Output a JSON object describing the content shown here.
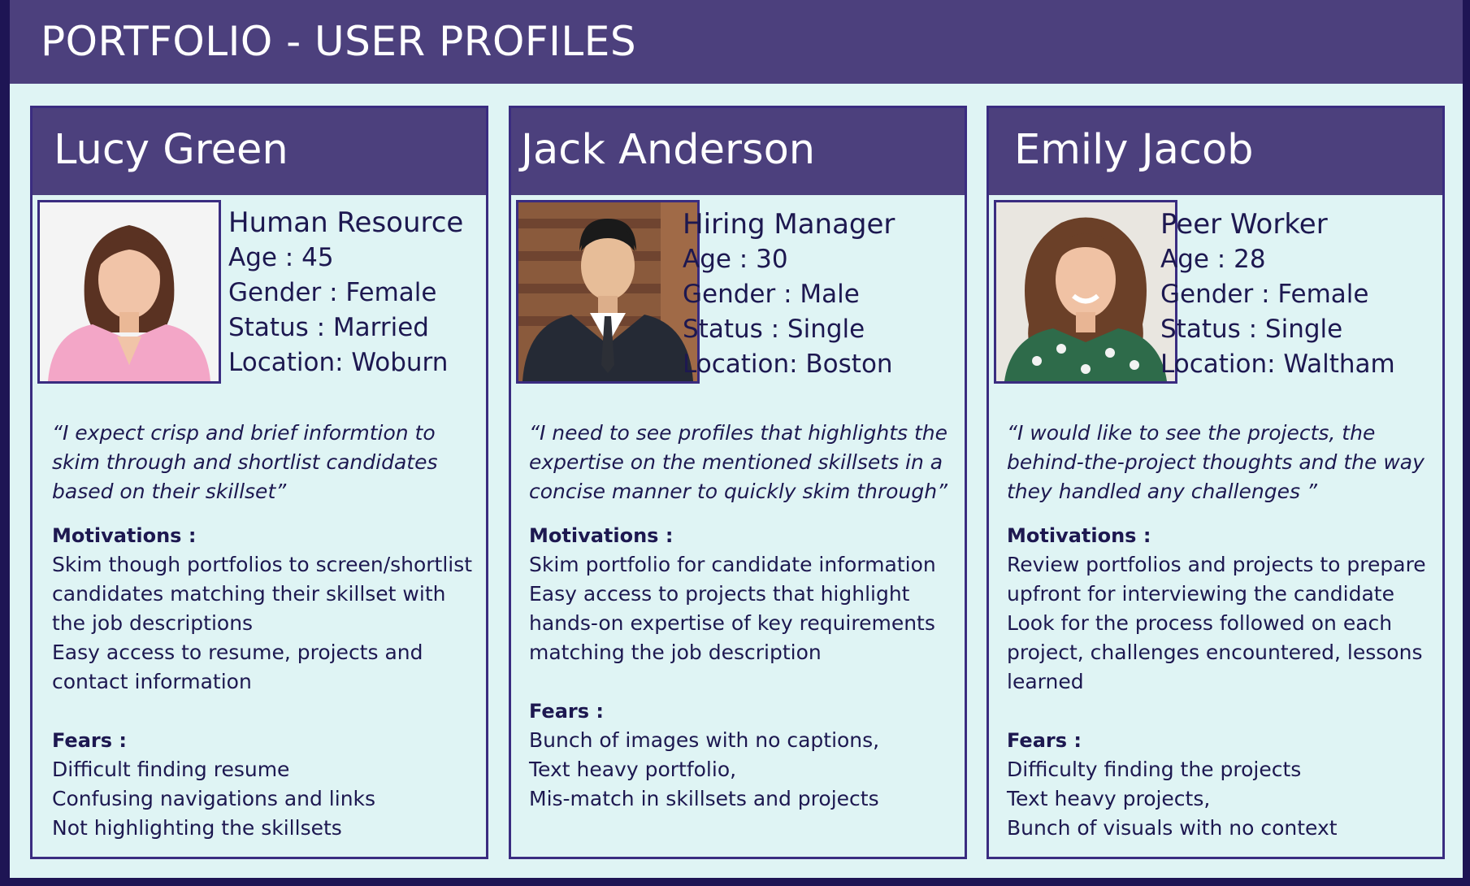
{
  "title": "PORTFOLIO - USER PROFILES",
  "profiles": [
    {
      "name": "Lucy Green",
      "role": "Human Resource",
      "age": "Age : 45",
      "gender": "Gender : Female",
      "status": "Status : Married",
      "location": "Location: Woburn",
      "quote": "“I expect crisp and brief informtion to skim through and shortlist candidates based on their skillset”",
      "motivations_label": "Motivations :",
      "motivations": [
        "Skim though portfolios to screen/shortlist candidates matching their skillset with the job descriptions",
        "Easy access to resume, projects and contact information"
      ],
      "fears_label": "Fears :",
      "fears": [
        "Difficult finding resume",
        "Confusing navigations and links",
        "Not highlighting the skillsets"
      ]
    },
    {
      "name": "Jack Anderson",
      "role": "Hiring Manager",
      "age": "Age : 30",
      "gender": "Gender : Male",
      "status": "Status : Single",
      "location": "Location: Boston",
      "quote": "“I need to see profiles that highlights the expertise on the mentioned skillsets in a concise manner to quickly skim through”",
      "motivations_label": "Motivations :",
      "motivations": [
        "Skim portfolio for candidate information",
        "Easy access to projects that highlight hands-on expertise of key requirements matching the job description"
      ],
      "fears_label": "Fears :",
      "fears": [
        "Bunch of images with no captions,",
        "Text heavy portfolio,",
        "Mis-match in skillsets and projects"
      ]
    },
    {
      "name": "Emily Jacob",
      "role": "Peer Worker",
      "age": "Age : 28",
      "gender": "Gender : Female",
      "status": "Status : Single",
      "location": "Location: Waltham",
      "quote": "“I would like to see the projects, the behind-the-project thoughts and the way they handled any challenges ”",
      "motivations_label": "Motivations :",
      "motivations": [
        "Review portfolios and projects to prepare upfront for interviewing the candidate",
        "Look for the process followed on each project, challenges encountered, lessons learned"
      ],
      "fears_label": "Fears :",
      "fears": [
        "Difficulty finding the projects",
        "Text heavy projects,",
        "Bunch of visuals with no context"
      ]
    }
  ]
}
